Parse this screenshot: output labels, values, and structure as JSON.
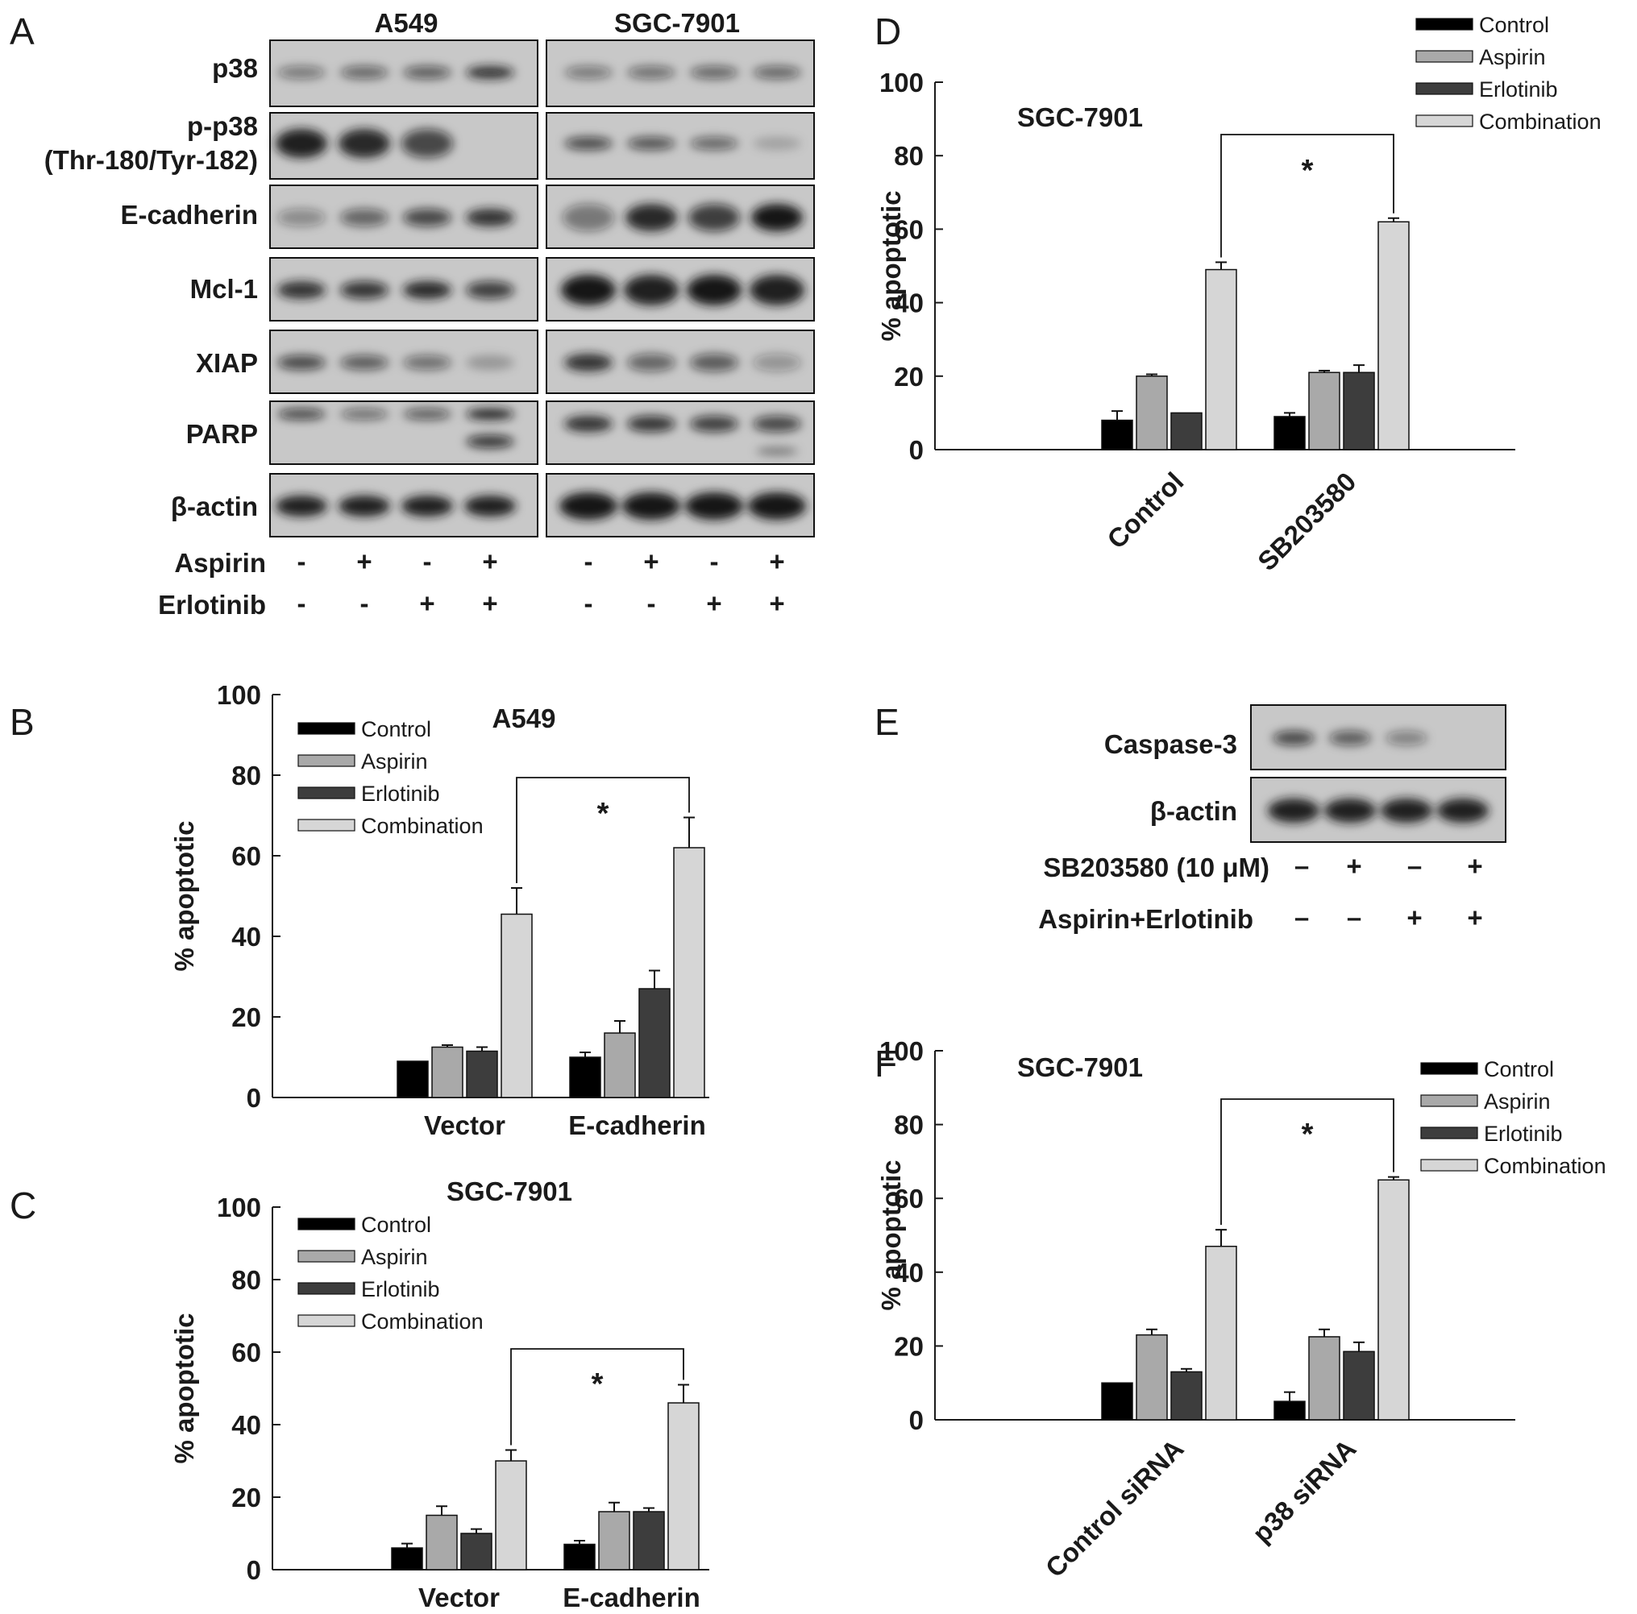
{
  "panel_letters": {
    "a": "A",
    "b": "B",
    "c": "C",
    "d": "D",
    "e": "E",
    "f": "F"
  },
  "blot_a": {
    "cell_lines": [
      "A549",
      "SGC-7901"
    ],
    "rows": [
      {
        "label": "p38",
        "intensity": [
          [
            0.45,
            0.55,
            0.6,
            0.85
          ],
          [
            0.45,
            0.5,
            0.55,
            0.55
          ]
        ]
      },
      {
        "label": "p-p38",
        "label2": "(Thr-180/Tyr-182)",
        "intensity": [
          [
            0.95,
            0.9,
            0.7,
            0.0
          ],
          [
            0.7,
            0.65,
            0.55,
            0.2
          ]
        ]
      },
      {
        "label": "E-cadherin",
        "intensity": [
          [
            0.35,
            0.55,
            0.7,
            0.85
          ],
          [
            0.45,
            0.9,
            0.75,
            1.0
          ]
        ]
      },
      {
        "label": "Mcl-1",
        "intensity": [
          [
            0.85,
            0.8,
            0.9,
            0.75
          ],
          [
            1.0,
            0.95,
            1.0,
            0.95
          ]
        ]
      },
      {
        "label": "XIAP",
        "intensity": [
          [
            0.7,
            0.6,
            0.5,
            0.25
          ],
          [
            0.85,
            0.55,
            0.6,
            0.3
          ]
        ]
      },
      {
        "label": "PARP",
        "intensity": [
          [
            0.7,
            0.5,
            0.6,
            0.9
          ],
          [
            0.85,
            0.8,
            0.75,
            0.7
          ]
        ]
      },
      {
        "label": "β-actin",
        "intensity": [
          [
            0.95,
            0.95,
            0.95,
            0.95
          ],
          [
            1.0,
            1.0,
            1.0,
            1.0
          ]
        ]
      }
    ],
    "treatments": [
      {
        "label": "Aspirin",
        "signs": [
          "-",
          "+",
          "-",
          "+",
          "-",
          "+",
          "-",
          "+"
        ]
      },
      {
        "label": "Erlotinib",
        "signs": [
          "-",
          "-",
          "+",
          "+",
          "-",
          "-",
          "+",
          "+"
        ]
      }
    ]
  },
  "blot_e": {
    "rows": [
      {
        "label": "Caspase-3",
        "intensity": [
          0.7,
          0.6,
          0.4,
          0.0
        ]
      },
      {
        "label": "β-actin",
        "intensity": [
          0.95,
          0.95,
          0.95,
          0.95
        ]
      }
    ],
    "treatments": [
      {
        "label": "SB203580 (10 μM)",
        "signs": [
          "–",
          "+",
          "–",
          "+"
        ]
      },
      {
        "label": "Aspirin+Erlotinib",
        "signs": [
          "–",
          "–",
          "+",
          "+"
        ]
      }
    ]
  },
  "colors": {
    "control": "#000000",
    "aspirin": "#a9a9a9",
    "erlotinib": "#3d3d3d",
    "combination": "#d6d6d6"
  },
  "chart_data": [
    {
      "panel": "B",
      "type": "bar",
      "title": "A549",
      "xlabel": "",
      "ylabel": "% apoptotic",
      "ylim": [
        0,
        100
      ],
      "yticks": [
        0,
        20,
        40,
        60,
        80,
        100
      ],
      "categories": [
        "Vector",
        "E-cadherin"
      ],
      "legend_position": "top-left",
      "series": [
        {
          "name": "Control",
          "values": [
            9,
            10
          ],
          "errors": [
            0,
            1.2
          ]
        },
        {
          "name": "Aspirin",
          "values": [
            12.5,
            16
          ],
          "errors": [
            0.5,
            3
          ]
        },
        {
          "name": "Erlotinib",
          "values": [
            11.5,
            27
          ],
          "errors": [
            1,
            4.5
          ]
        },
        {
          "name": "Combination",
          "values": [
            45.5,
            62
          ],
          "errors": [
            6.5,
            7.5
          ]
        }
      ],
      "annotations": [
        {
          "text": "*",
          "from": "Vector Combination",
          "to": "E-cadherin Combination"
        }
      ]
    },
    {
      "panel": "C",
      "type": "bar",
      "title": "SGC-7901",
      "xlabel": "",
      "ylabel": "% apoptotic",
      "ylim": [
        0,
        100
      ],
      "yticks": [
        0,
        20,
        40,
        60,
        80,
        100
      ],
      "categories": [
        "Vector",
        "E-cadherin"
      ],
      "legend_position": "top-left",
      "series": [
        {
          "name": "Control",
          "values": [
            6,
            7
          ],
          "errors": [
            1.2,
            1
          ]
        },
        {
          "name": "Aspirin",
          "values": [
            15,
            16
          ],
          "errors": [
            2.5,
            2.5
          ]
        },
        {
          "name": "Erlotinib",
          "values": [
            10,
            16
          ],
          "errors": [
            1.2,
            1
          ]
        },
        {
          "name": "Combination",
          "values": [
            30,
            46
          ],
          "errors": [
            3,
            5
          ]
        }
      ],
      "annotations": [
        {
          "text": "*",
          "from": "Vector Combination",
          "to": "E-cadherin Combination"
        }
      ]
    },
    {
      "panel": "D",
      "type": "bar",
      "title": "SGC-7901",
      "xlabel": "",
      "ylabel": "% apoptotic",
      "ylim": [
        0,
        100
      ],
      "yticks": [
        0,
        20,
        40,
        60,
        80,
        100
      ],
      "categories": [
        "Control",
        "SB203580"
      ],
      "legend_position": "top-right",
      "series": [
        {
          "name": "Control",
          "values": [
            8,
            9
          ],
          "errors": [
            2.5,
            1
          ]
        },
        {
          "name": "Aspirin",
          "values": [
            20,
            21
          ],
          "errors": [
            0.5,
            0.5
          ]
        },
        {
          "name": "Erlotinib",
          "values": [
            10,
            21
          ],
          "errors": [
            0,
            2
          ]
        },
        {
          "name": "Combination",
          "values": [
            49,
            62
          ],
          "errors": [
            2,
            1
          ]
        }
      ],
      "annotations": [
        {
          "text": "*",
          "from": "Control Combination",
          "to": "SB203580 Combination"
        }
      ]
    },
    {
      "panel": "F",
      "type": "bar",
      "title": "SGC-7901",
      "xlabel": "",
      "ylabel": "% apoptotic",
      "ylim": [
        0,
        100
      ],
      "yticks": [
        0,
        20,
        40,
        60,
        80,
        100
      ],
      "categories": [
        "Control siRNA",
        "p38 siRNA"
      ],
      "legend_position": "top-right",
      "series": [
        {
          "name": "Control",
          "values": [
            10,
            5
          ],
          "errors": [
            0,
            2.5
          ]
        },
        {
          "name": "Aspirin",
          "values": [
            23,
            22.5
          ],
          "errors": [
            1.5,
            2
          ]
        },
        {
          "name": "Erlotinib",
          "values": [
            13,
            18.5
          ],
          "errors": [
            0.8,
            2.5
          ]
        },
        {
          "name": "Combination",
          "values": [
            47,
            65
          ],
          "errors": [
            4.5,
            0.8
          ]
        }
      ],
      "annotations": [
        {
          "text": "*",
          "from": "Control siRNA Combination",
          "to": "p38 siRNA Combination"
        }
      ]
    }
  ]
}
